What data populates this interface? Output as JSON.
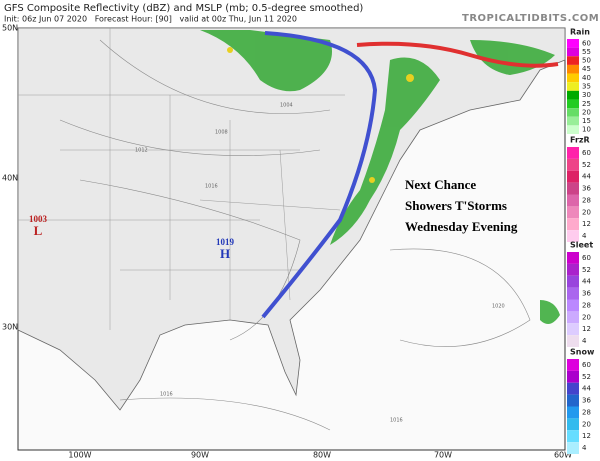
{
  "header": {
    "title": "GFS Composite Reflectivity (dBZ) and MSLP (mb; 0.5-degree smoothed)",
    "subtitle": "Init: 06z Jun 07 2020   Forecast Hour: [90]   valid at 00z Thu, Jun 11 2020",
    "watermark": "TROPICALTIDBITS.COM"
  },
  "map": {
    "latitudes": [
      "50N",
      "40N",
      "30N"
    ],
    "longitudes": [
      "100W",
      "90W",
      "80W",
      "70W",
      "60W"
    ],
    "isobars": [
      "1008",
      "1012",
      "1016",
      "1004",
      "1020",
      "1016",
      "1016"
    ],
    "centers": [
      {
        "pressure": "1003",
        "label": "L"
      },
      {
        "pressure": "1019",
        "label": "H"
      }
    ],
    "annotation": [
      "Next Chance",
      "Showers T'Storms",
      "Wednesday Evening"
    ]
  },
  "legend": [
    {
      "title": "Rain",
      "ticks": [
        60,
        55,
        50,
        45,
        40,
        35,
        30,
        25,
        20,
        15,
        10
      ]
    },
    {
      "title": "FrzR",
      "ticks": [
        60,
        52,
        44,
        36,
        28,
        20,
        12,
        4
      ]
    },
    {
      "title": "Sleet",
      "ticks": [
        60,
        52,
        44,
        36,
        28,
        20,
        12,
        4
      ]
    },
    {
      "title": "Snow",
      "ticks": [
        60,
        52,
        44,
        36,
        28,
        20,
        12,
        4
      ]
    }
  ]
}
